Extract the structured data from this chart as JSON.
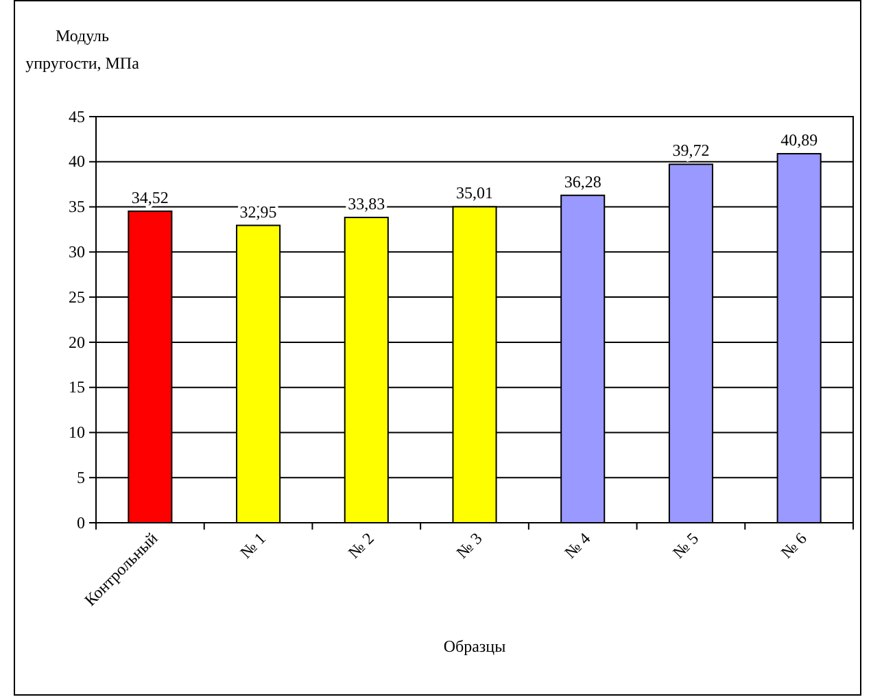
{
  "chart_data": {
    "type": "bar",
    "ylabel": "Модуль упругости, МПа",
    "xlabel": "Образцы",
    "categories": [
      "Контрольный",
      "№ 1",
      "№ 2",
      "№ 3",
      "№ 4",
      "№ 5",
      "№ 6"
    ],
    "values": [
      34.52,
      32.95,
      33.83,
      35.01,
      36.28,
      39.72,
      40.89
    ],
    "colors": [
      "#ff0000",
      "#ffff00",
      "#ffff00",
      "#ffff00",
      "#9999ff",
      "#9999ff",
      "#9999ff"
    ],
    "value_labels": [
      "34,52",
      "32,95",
      "33,83",
      "35,01",
      "36,28",
      "39,72",
      "40,89"
    ],
    "ylim": [
      0,
      45
    ],
    "yticks": [
      0,
      5,
      10,
      15,
      20,
      25,
      30,
      35,
      40,
      45
    ],
    "grid": "y"
  }
}
